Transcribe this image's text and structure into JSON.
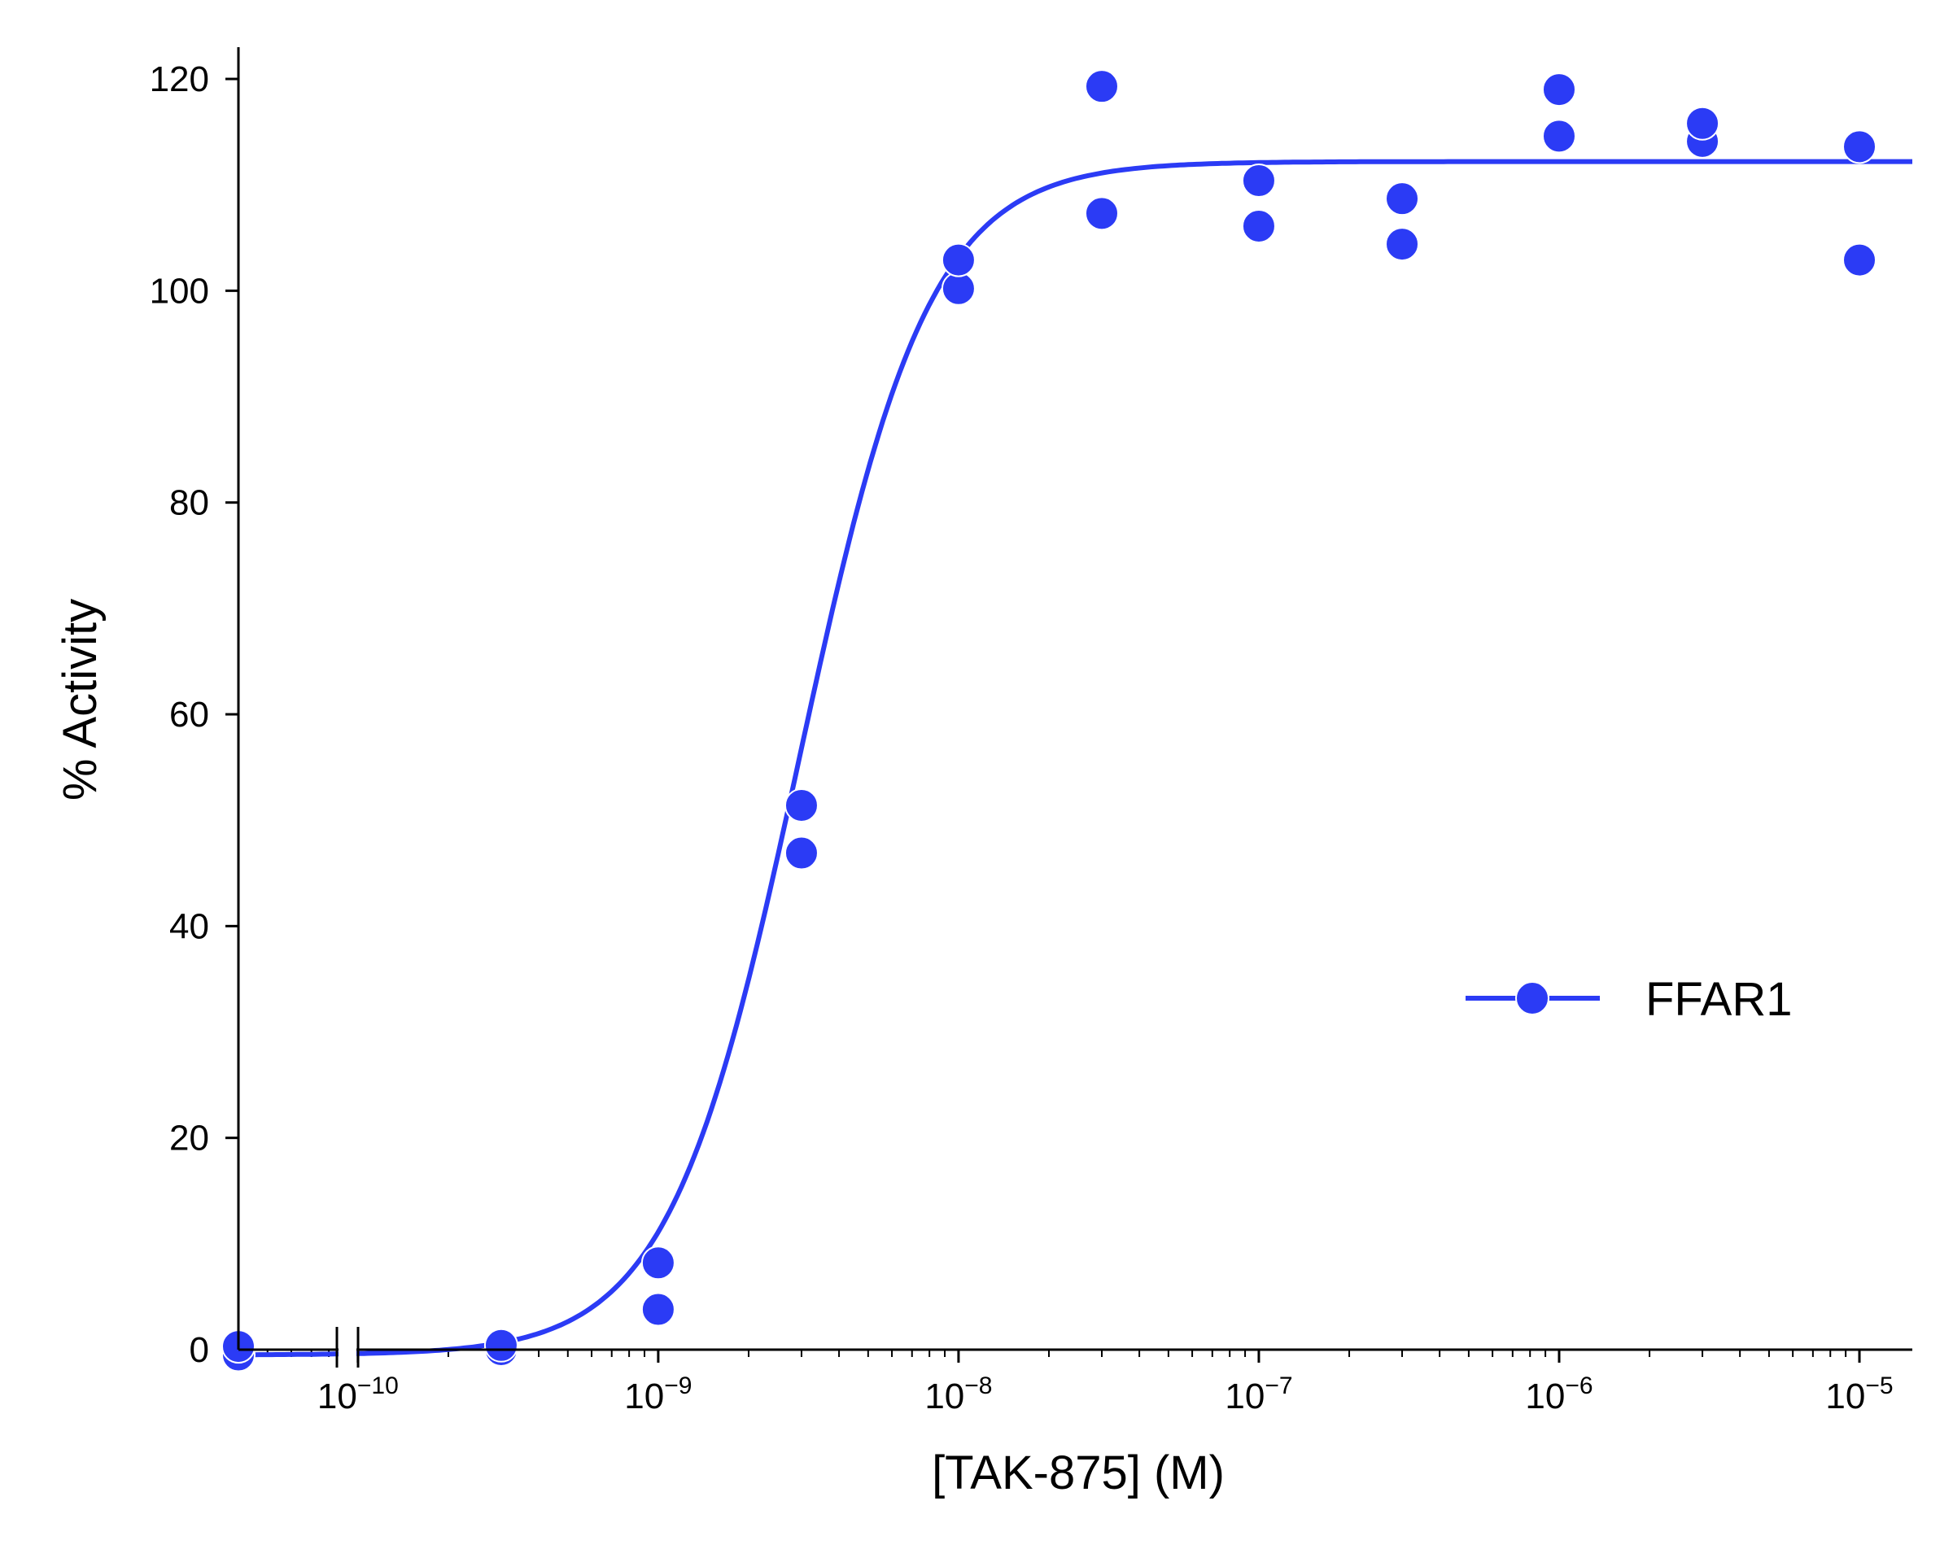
{
  "chart_data": {
    "type": "scatter",
    "xlabel": "[TAK-875] (M)",
    "ylabel": "% Activity",
    "x_scale": "log",
    "xlim": [
      4e-11,
      1.5e-05
    ],
    "ylim": [
      0,
      123
    ],
    "y_ticks": [
      0,
      20,
      40,
      60,
      80,
      100,
      120
    ],
    "x_ticks": [
      {
        "value": 1e-10,
        "base": "10",
        "exp": "−10"
      },
      {
        "value": 1e-09,
        "base": "10",
        "exp": "−9"
      },
      {
        "value": 1e-08,
        "base": "10",
        "exp": "−8"
      },
      {
        "value": 1e-07,
        "base": "10",
        "exp": "−7"
      },
      {
        "value": 1e-06,
        "base": "10",
        "exp": "−6"
      },
      {
        "value": 1e-05,
        "base": "10",
        "exp": "−5"
      }
    ],
    "axis_break_at": 1e-10,
    "grid": false,
    "legend_position": "center-right",
    "series": [
      {
        "name": "FFAR1",
        "color": "#2b3bf5",
        "points": [
          {
            "x": 4e-11,
            "y": -0.5
          },
          {
            "x": 4e-11,
            "y": 0.3
          },
          {
            "x": 3e-10,
            "y": 0.0
          },
          {
            "x": 3e-10,
            "y": 0.4
          },
          {
            "x": 1e-09,
            "y": 3.8
          },
          {
            "x": 1e-09,
            "y": 8.2
          },
          {
            "x": 3e-09,
            "y": 46.9
          },
          {
            "x": 3e-09,
            "y": 51.4
          },
          {
            "x": 1e-08,
            "y": 100.2
          },
          {
            "x": 1e-08,
            "y": 102.9
          },
          {
            "x": 3e-08,
            "y": 107.3
          },
          {
            "x": 3e-08,
            "y": 119.3
          },
          {
            "x": 1e-07,
            "y": 106.1
          },
          {
            "x": 1e-07,
            "y": 110.4
          },
          {
            "x": 3e-07,
            "y": 104.4
          },
          {
            "x": 3e-07,
            "y": 108.7
          },
          {
            "x": 1e-06,
            "y": 114.6
          },
          {
            "x": 1e-06,
            "y": 119.0
          },
          {
            "x": 3e-06,
            "y": 114.1
          },
          {
            "x": 3e-06,
            "y": 115.8
          },
          {
            "x": 1e-05,
            "y": 102.9
          },
          {
            "x": 1e-05,
            "y": 113.6
          }
        ],
        "fit": {
          "model": "four-parameter logistic",
          "bottom": -0.5,
          "top": 112.2,
          "ec50": 2.95e-09,
          "hill": 2.0
        }
      }
    ]
  }
}
